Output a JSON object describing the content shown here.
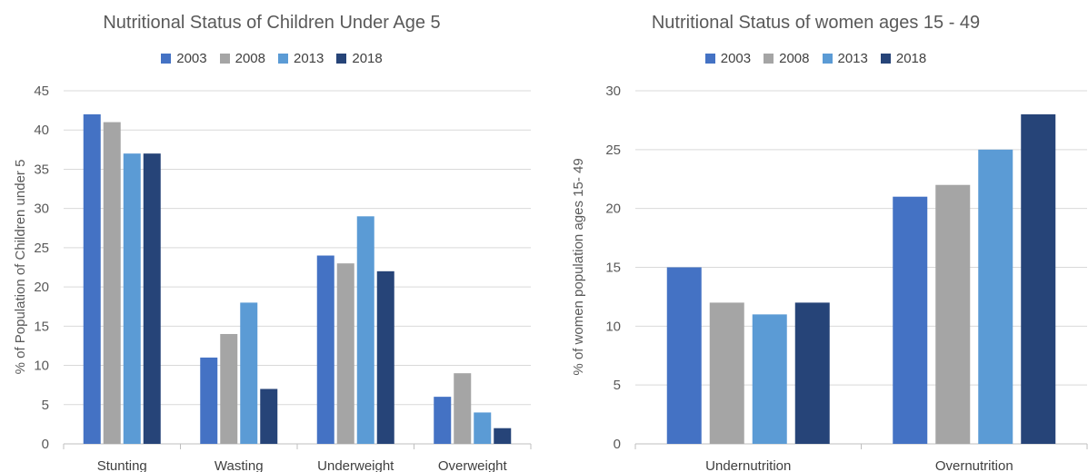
{
  "chart_data": [
    {
      "type": "bar",
      "title": "Nutritional Status of Children Under Age 5",
      "xlabel": "",
      "ylabel": "% of Population of Children under 5",
      "categories": [
        "Stunting",
        "Wasting",
        "Underweight",
        "Overweight"
      ],
      "series": [
        {
          "name": "2003",
          "color": "#4472C4",
          "values": [
            42,
            11,
            24,
            6
          ]
        },
        {
          "name": "2008",
          "color": "#A5A5A5",
          "values": [
            41,
            14,
            23,
            9
          ]
        },
        {
          "name": "2013",
          "color": "#5B9BD5",
          "values": [
            37,
            18,
            29,
            4
          ]
        },
        {
          "name": "2018",
          "color": "#264478",
          "values": [
            37,
            7,
            22,
            2
          ]
        }
      ],
      "ylim": [
        0,
        45
      ],
      "yticks": [
        "0",
        "5",
        "10",
        "15",
        "20",
        "25",
        "30",
        "35",
        "40",
        "45"
      ],
      "grid": true,
      "legend_position": "top"
    },
    {
      "type": "bar",
      "title": "Nutritional Status of women ages 15 - 49",
      "xlabel": "",
      "ylabel": "% of women population ages 15- 49",
      "categories": [
        "Undernutrition",
        "Overnutrition"
      ],
      "series": [
        {
          "name": "2003",
          "color": "#4472C4",
          "values": [
            15,
            21
          ]
        },
        {
          "name": "2008",
          "color": "#A5A5A5",
          "values": [
            12,
            22
          ]
        },
        {
          "name": "2013",
          "color": "#5B9BD5",
          "values": [
            11,
            25
          ]
        },
        {
          "name": "2018",
          "color": "#264478",
          "values": [
            12,
            28
          ]
        }
      ],
      "ylim": [
        0,
        30
      ],
      "yticks": [
        "0",
        "5",
        "10",
        "15",
        "20",
        "25",
        "30"
      ],
      "grid": true,
      "legend_position": "top"
    }
  ]
}
